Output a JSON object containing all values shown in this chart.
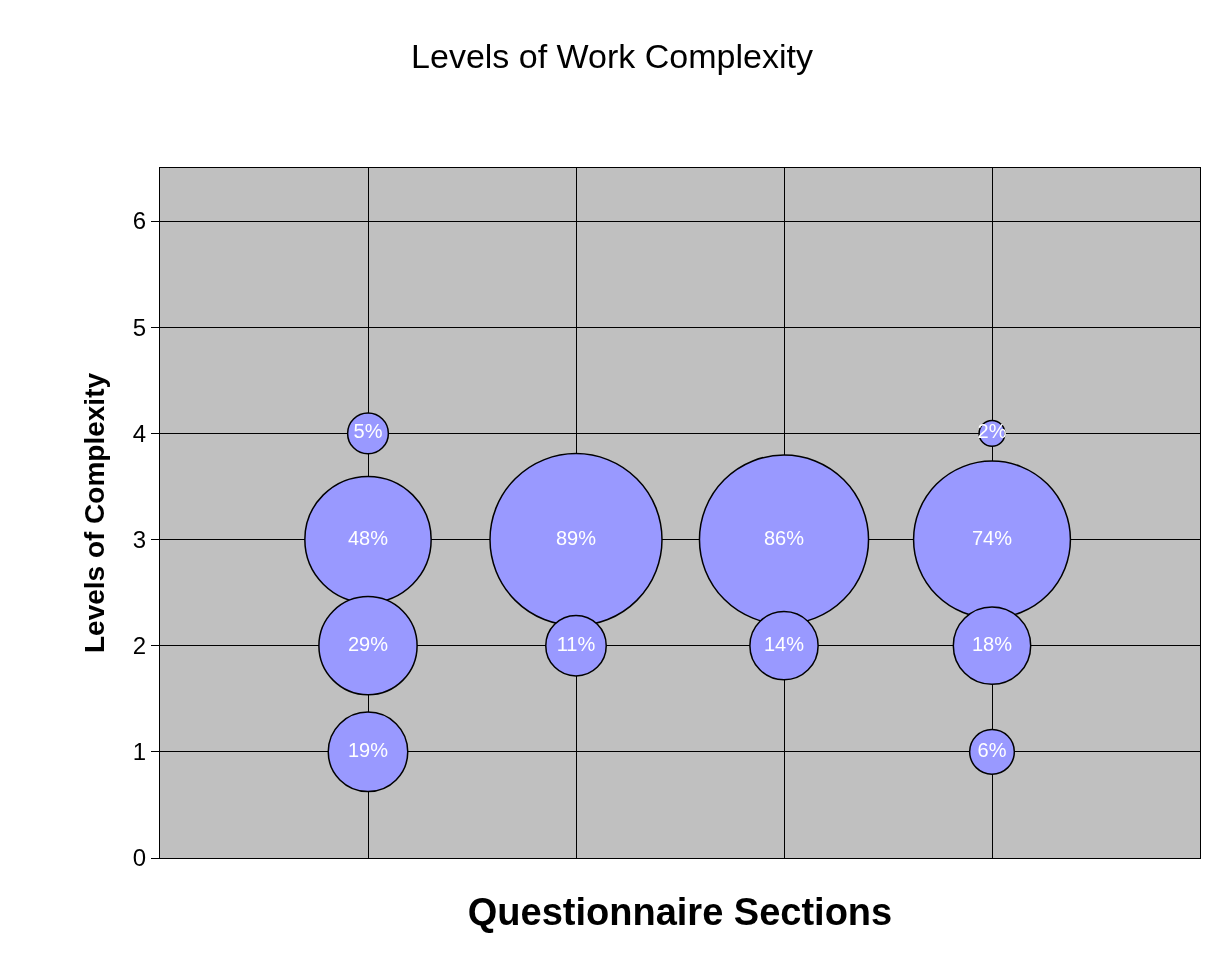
{
  "chart_data": {
    "type": "bubble",
    "title": "Levels of Work Complexity",
    "xlabel": "Questionnaire Sections",
    "ylabel": "Levels of Complexity",
    "categories": [
      null,
      null,
      null,
      null
    ],
    "series": [
      {
        "color": "#9999ff",
        "values": [
          4,
          null,
          null,
          4
        ],
        "sizes": [
          5,
          null,
          null,
          2
        ],
        "value_labels": [
          "5%",
          null,
          null,
          "2%"
        ]
      },
      {
        "color": "#9999ff",
        "values": [
          3,
          3,
          3,
          3
        ],
        "sizes": [
          48,
          89,
          86,
          74
        ],
        "value_labels": [
          "48%",
          "89%",
          "86%",
          "74%"
        ]
      },
      {
        "color": "#9999ff",
        "values": [
          2,
          2,
          2,
          2
        ],
        "sizes": [
          29,
          11,
          14,
          18
        ],
        "value_labels": [
          "29%",
          "11%",
          "14%",
          "18%"
        ]
      },
      {
        "color": "#9999ff",
        "values": [
          1,
          null,
          null,
          1
        ],
        "sizes": [
          19,
          null,
          null,
          6
        ],
        "value_labels": [
          "19%",
          null,
          null,
          "6%"
        ]
      }
    ],
    "ylim": [
      0,
      6.5
    ],
    "yticks": [
      0,
      1,
      2,
      3,
      4,
      5,
      6
    ],
    "tick_labels": "y",
    "grid": true,
    "legend": false
  }
}
